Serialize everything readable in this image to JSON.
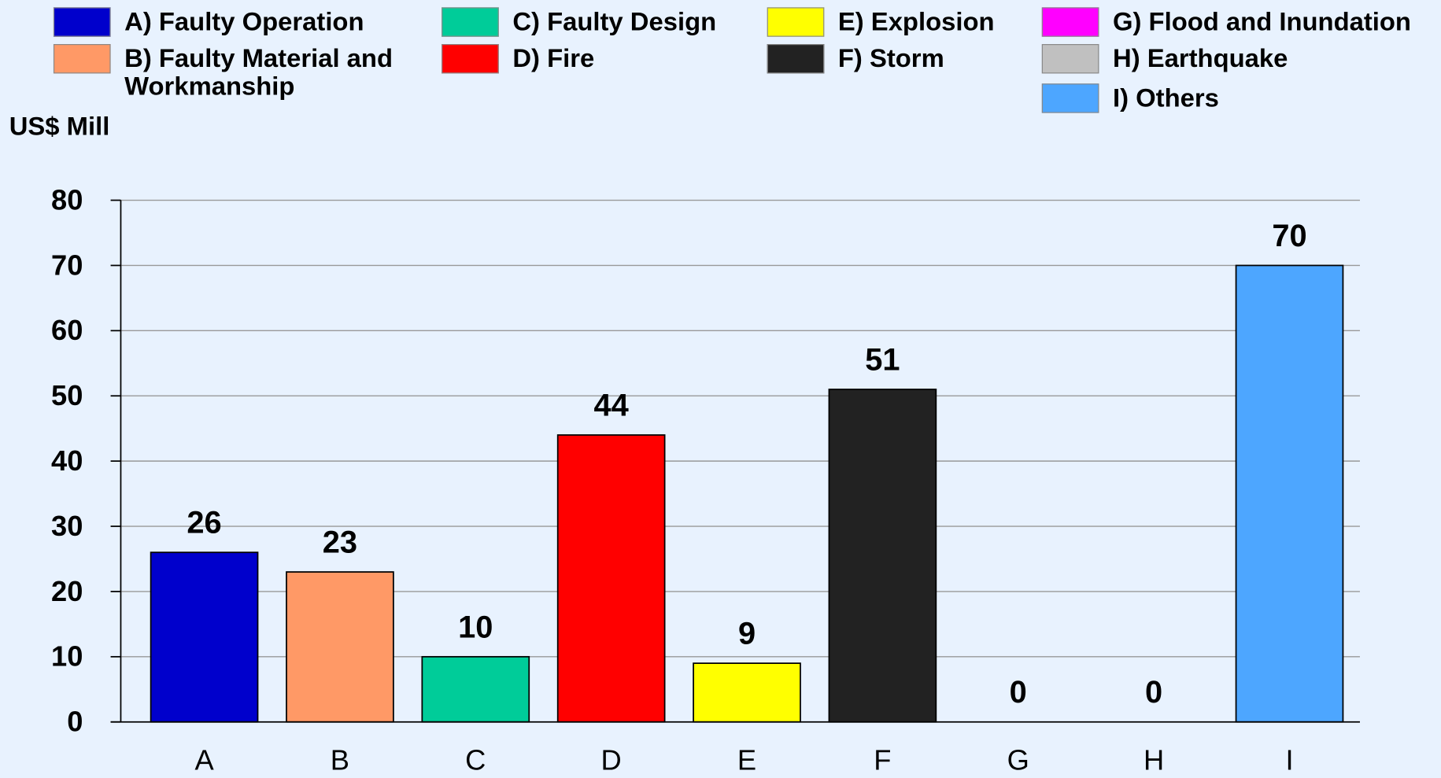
{
  "chart_data": {
    "type": "bar",
    "y_label": "US$ Mill",
    "categories": [
      "A",
      "B",
      "C",
      "D",
      "E",
      "F",
      "G",
      "H",
      "I"
    ],
    "values": [
      26,
      23,
      10,
      44,
      9,
      51,
      0,
      0,
      70
    ],
    "colors": [
      "#0000cc",
      "#ff9966",
      "#00cc99",
      "#ff0000",
      "#ffff00",
      "#222222",
      "#ff00ff",
      "#c0c0c0",
      "#4da6ff"
    ],
    "legend": [
      "A) Faulty Operation",
      "B) Faulty Material and Workmanship",
      "C) Faulty Design",
      "D) Fire",
      "E) Explosion",
      "F) Storm",
      "G) Flood and Inundation",
      "H) Earthquake",
      "I) Others"
    ],
    "ylim": [
      0,
      80
    ],
    "yticks": [
      0,
      10,
      20,
      30,
      40,
      50,
      60,
      70,
      80
    ],
    "grid": true
  }
}
